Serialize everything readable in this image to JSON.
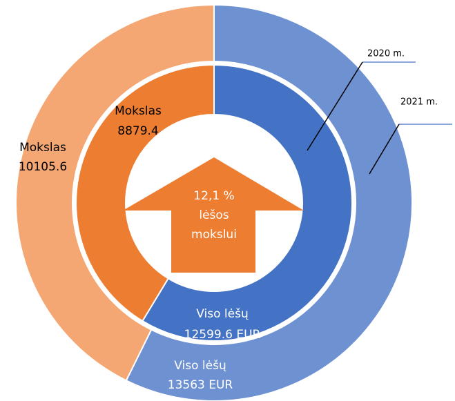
{
  "chart_data": {
    "type": "donut",
    "categories": [
      "Mokslas",
      "Viso lėšų"
    ],
    "series": [
      {
        "name": "2020 m.",
        "colors": [
          "#ed7d31",
          "#4472c4"
        ],
        "values": [
          8879.4,
          12599.6
        ],
        "value_labels": [
          "8879.4",
          "12599.6 EUR"
        ]
      },
      {
        "name": "2021 m.",
        "colors": [
          "#f4a772",
          "#6e91d2"
        ],
        "values": [
          10105.6,
          13563
        ],
        "value_labels": [
          "10105.6",
          "13563 EUR"
        ]
      }
    ],
    "center_text": [
      "12,1 %",
      "lėšos",
      "mokslui"
    ]
  }
}
